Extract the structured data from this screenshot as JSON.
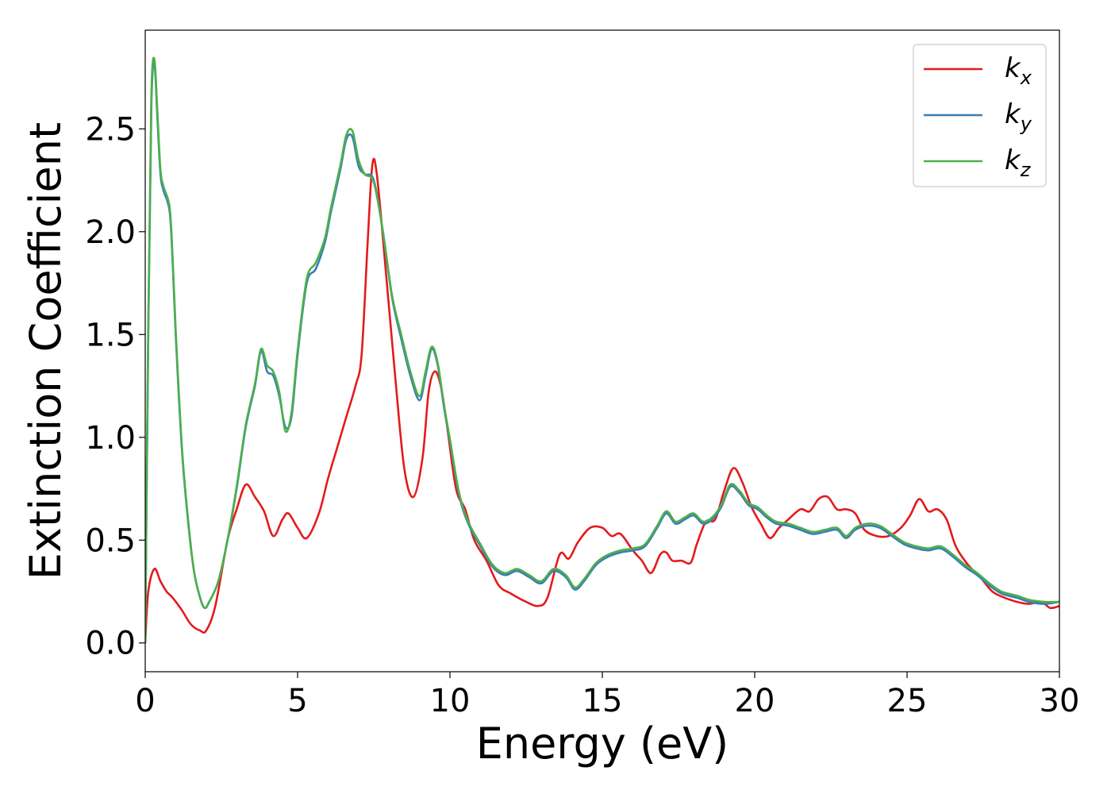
{
  "chart_data": {
    "type": "line",
    "xlabel": "Energy (eV)",
    "ylabel": "Extinction Coefficient",
    "xlim": [
      0,
      30
    ],
    "ylim": [
      -0.14,
      2.98
    ],
    "x_ticks": [
      "0",
      "5",
      "10",
      "15",
      "20",
      "25",
      "30"
    ],
    "y_ticks": [
      "0.0",
      "0.5",
      "1.0",
      "1.5",
      "2.0",
      "2.5"
    ],
    "grid": false,
    "legend_position": "top-right",
    "series": [
      {
        "name": "k_x",
        "label_base": "k",
        "label_sub": "x",
        "color": "#e41a1c",
        "x": [
          0,
          0.1,
          0.3,
          0.5,
          0.7,
          0.9,
          1.2,
          1.5,
          1.8,
          2.0,
          2.3,
          2.7,
          3.0,
          3.3,
          3.6,
          3.9,
          4.2,
          4.5,
          4.7,
          5.0,
          5.3,
          5.7,
          6.0,
          6.3,
          6.6,
          6.9,
          7.1,
          7.3,
          7.45,
          7.6,
          7.9,
          8.2,
          8.5,
          8.8,
          9.1,
          9.3,
          9.5,
          9.7,
          9.9,
          10.2,
          10.5,
          10.8,
          11.2,
          11.6,
          12.0,
          12.5,
          12.9,
          13.2,
          13.6,
          13.9,
          14.2,
          14.6,
          15.0,
          15.3,
          15.6,
          16.0,
          16.3,
          16.6,
          16.9,
          17.1,
          17.3,
          17.6,
          17.9,
          18.1,
          18.4,
          18.7,
          19.0,
          19.3,
          19.6,
          19.9,
          20.2,
          20.5,
          20.8,
          21.1,
          21.5,
          21.8,
          22.1,
          22.4,
          22.7,
          23.0,
          23.3,
          23.6,
          24.0,
          24.4,
          24.8,
          25.1,
          25.4,
          25.7,
          26.0,
          26.3,
          26.6,
          27.0,
          27.4,
          27.8,
          28.2,
          28.6,
          29.0,
          29.4,
          29.7,
          30.0
        ],
        "values": [
          0.0,
          0.25,
          0.36,
          0.3,
          0.25,
          0.22,
          0.16,
          0.09,
          0.06,
          0.06,
          0.18,
          0.5,
          0.65,
          0.77,
          0.71,
          0.64,
          0.52,
          0.6,
          0.63,
          0.56,
          0.51,
          0.63,
          0.8,
          0.95,
          1.1,
          1.25,
          1.4,
          1.95,
          2.32,
          2.28,
          1.8,
          1.3,
          0.85,
          0.71,
          0.9,
          1.22,
          1.32,
          1.25,
          1.06,
          0.75,
          0.65,
          0.5,
          0.4,
          0.28,
          0.24,
          0.2,
          0.18,
          0.22,
          0.43,
          0.41,
          0.49,
          0.56,
          0.56,
          0.52,
          0.53,
          0.45,
          0.4,
          0.34,
          0.43,
          0.44,
          0.4,
          0.4,
          0.39,
          0.48,
          0.59,
          0.6,
          0.74,
          0.85,
          0.78,
          0.66,
          0.58,
          0.51,
          0.56,
          0.6,
          0.65,
          0.64,
          0.7,
          0.71,
          0.65,
          0.65,
          0.63,
          0.55,
          0.52,
          0.52,
          0.56,
          0.62,
          0.7,
          0.64,
          0.65,
          0.6,
          0.47,
          0.38,
          0.32,
          0.25,
          0.22,
          0.2,
          0.19,
          0.2,
          0.17,
          0.18
        ]
      },
      {
        "name": "k_y",
        "label_base": "k",
        "label_sub": "y",
        "color": "#377eb8",
        "x": [
          0,
          0.1,
          0.2,
          0.3,
          0.4,
          0.5,
          0.6,
          0.8,
          0.9,
          1.0,
          1.2,
          1.4,
          1.6,
          1.8,
          1.95,
          2.1,
          2.4,
          2.7,
          3.0,
          3.3,
          3.6,
          3.8,
          4.0,
          4.2,
          4.4,
          4.6,
          4.8,
          5.0,
          5.3,
          5.6,
          5.9,
          6.1,
          6.4,
          6.6,
          6.8,
          7.0,
          7.2,
          7.5,
          7.8,
          8.1,
          8.4,
          8.7,
          9.0,
          9.2,
          9.4,
          9.6,
          9.8,
          10.0,
          10.3,
          10.6,
          11.0,
          11.4,
          11.8,
          12.2,
          12.6,
          13.0,
          13.4,
          13.8,
          14.1,
          14.4,
          14.8,
          15.2,
          15.6,
          16.0,
          16.4,
          16.8,
          17.1,
          17.4,
          17.7,
          18.0,
          18.3,
          18.6,
          18.9,
          19.2,
          19.5,
          19.8,
          20.1,
          20.4,
          20.7,
          21.1,
          21.5,
          21.9,
          22.3,
          22.7,
          23.0,
          23.3,
          23.7,
          24.1,
          24.5,
          24.9,
          25.3,
          25.7,
          26.1,
          26.5,
          26.9,
          27.3,
          27.7,
          28.1,
          28.6,
          29.0,
          29.5,
          30.0
        ],
        "values": [
          0.0,
          1.5,
          2.6,
          2.82,
          2.55,
          2.28,
          2.2,
          2.1,
          1.85,
          1.5,
          0.95,
          0.6,
          0.35,
          0.22,
          0.17,
          0.2,
          0.3,
          0.5,
          0.75,
          1.05,
          1.25,
          1.42,
          1.32,
          1.3,
          1.2,
          1.05,
          1.1,
          1.4,
          1.75,
          1.82,
          1.95,
          2.1,
          2.3,
          2.45,
          2.46,
          2.32,
          2.28,
          2.25,
          2.0,
          1.68,
          1.48,
          1.3,
          1.18,
          1.3,
          1.43,
          1.35,
          1.15,
          0.98,
          0.72,
          0.58,
          0.47,
          0.37,
          0.33,
          0.35,
          0.32,
          0.29,
          0.35,
          0.32,
          0.26,
          0.3,
          0.38,
          0.42,
          0.44,
          0.45,
          0.47,
          0.56,
          0.63,
          0.58,
          0.6,
          0.62,
          0.58,
          0.6,
          0.66,
          0.76,
          0.73,
          0.67,
          0.65,
          0.61,
          0.58,
          0.57,
          0.55,
          0.53,
          0.54,
          0.55,
          0.51,
          0.55,
          0.57,
          0.56,
          0.52,
          0.48,
          0.46,
          0.45,
          0.46,
          0.42,
          0.37,
          0.33,
          0.28,
          0.24,
          0.22,
          0.2,
          0.19,
          0.2
        ]
      },
      {
        "name": "k_z",
        "label_base": "k",
        "label_sub": "z",
        "color": "#4daf4a",
        "x": [
          0,
          0.1,
          0.2,
          0.3,
          0.4,
          0.5,
          0.6,
          0.8,
          0.9,
          1.0,
          1.2,
          1.4,
          1.6,
          1.8,
          1.95,
          2.1,
          2.4,
          2.7,
          3.0,
          3.3,
          3.6,
          3.8,
          4.0,
          4.2,
          4.4,
          4.6,
          4.8,
          5.0,
          5.3,
          5.6,
          5.9,
          6.1,
          6.4,
          6.6,
          6.8,
          7.0,
          7.2,
          7.5,
          7.8,
          8.1,
          8.4,
          8.7,
          9.0,
          9.2,
          9.4,
          9.6,
          9.8,
          10.0,
          10.3,
          10.6,
          11.0,
          11.4,
          11.8,
          12.2,
          12.6,
          13.0,
          13.4,
          13.8,
          14.1,
          14.4,
          14.8,
          15.2,
          15.6,
          16.0,
          16.4,
          16.8,
          17.1,
          17.4,
          17.7,
          18.0,
          18.3,
          18.6,
          18.9,
          19.2,
          19.5,
          19.8,
          20.1,
          20.4,
          20.7,
          21.1,
          21.5,
          21.9,
          22.3,
          22.7,
          23.0,
          23.3,
          23.7,
          24.1,
          24.5,
          24.9,
          25.3,
          25.7,
          26.1,
          26.5,
          26.9,
          27.3,
          27.7,
          28.1,
          28.6,
          29.0,
          29.5,
          30.0
        ],
        "values": [
          0.0,
          1.55,
          2.65,
          2.84,
          2.58,
          2.3,
          2.22,
          2.12,
          1.87,
          1.52,
          0.96,
          0.61,
          0.35,
          0.22,
          0.17,
          0.2,
          0.3,
          0.5,
          0.76,
          1.06,
          1.26,
          1.43,
          1.35,
          1.32,
          1.22,
          1.03,
          1.12,
          1.42,
          1.77,
          1.85,
          1.97,
          2.12,
          2.32,
          2.47,
          2.49,
          2.35,
          2.28,
          2.24,
          2.0,
          1.69,
          1.5,
          1.32,
          1.2,
          1.32,
          1.44,
          1.36,
          1.16,
          0.99,
          0.73,
          0.59,
          0.48,
          0.38,
          0.34,
          0.36,
          0.33,
          0.3,
          0.36,
          0.33,
          0.27,
          0.31,
          0.39,
          0.43,
          0.45,
          0.46,
          0.48,
          0.57,
          0.64,
          0.59,
          0.61,
          0.63,
          0.59,
          0.61,
          0.67,
          0.77,
          0.74,
          0.68,
          0.66,
          0.62,
          0.59,
          0.58,
          0.56,
          0.54,
          0.55,
          0.56,
          0.52,
          0.56,
          0.58,
          0.57,
          0.53,
          0.49,
          0.47,
          0.46,
          0.47,
          0.43,
          0.38,
          0.34,
          0.29,
          0.25,
          0.23,
          0.21,
          0.2,
          0.2
        ]
      }
    ]
  }
}
